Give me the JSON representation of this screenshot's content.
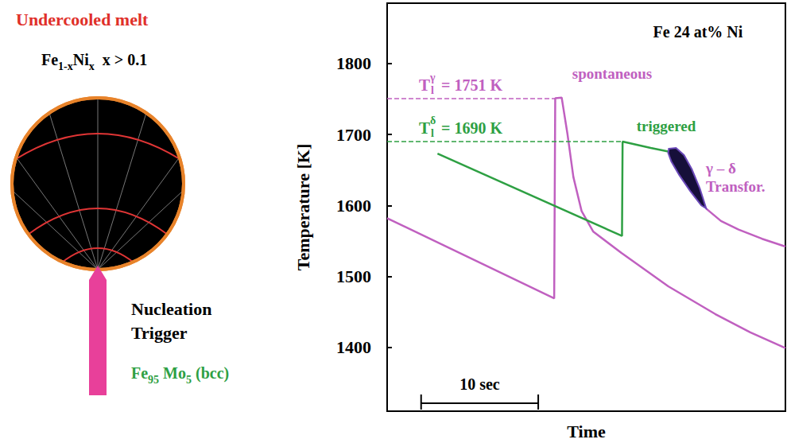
{
  "chart_data": {
    "type": "line",
    "title": "Fe 24 at% Ni",
    "x_label": "Time",
    "y_label": "Temperature [K]",
    "xlim": [
      0,
      34
    ],
    "ylim": [
      1310,
      1885
    ],
    "yticks": [
      1400,
      1500,
      1600,
      1700,
      1800
    ],
    "tick_labels": "y",
    "grid": false,
    "series": [
      {
        "color": "#c060c0",
        "values": [
          [
            0,
            1582
          ],
          [
            14.26,
            1469
          ],
          [
            14.35,
            1751
          ],
          [
            14.9,
            1752
          ],
          [
            15.4,
            1700
          ],
          [
            15.9,
            1640
          ],
          [
            16.6,
            1592
          ],
          [
            17.6,
            1563
          ],
          [
            20,
            1533
          ],
          [
            24,
            1486
          ],
          [
            28,
            1447
          ],
          [
            31,
            1421
          ],
          [
            34,
            1399
          ]
        ],
        "liquidus": {
          "symbol": "T",
          "subscript": "l",
          "superscript": "γ",
          "value": 1751,
          "label": "= 1751 K"
        }
      },
      {
        "color": "#2ea043",
        "values": [
          [
            4.3,
            1673
          ],
          [
            20.05,
            1557
          ],
          [
            20.1,
            1690
          ],
          [
            22.5,
            1681
          ],
          [
            24.0,
            1676
          ]
        ],
        "liquidus": {
          "symbol": "T",
          "subscript": "l",
          "superscript": "δ",
          "value": 1690,
          "label": "= 1690 K"
        }
      },
      {
        "color": "#c060c0",
        "values": [
          [
            27.2,
            1596
          ],
          [
            28.5,
            1578
          ],
          [
            30,
            1566
          ],
          [
            32,
            1553
          ],
          [
            34,
            1542
          ]
        ]
      }
    ],
    "annotations": [
      {
        "text": "spontaneous",
        "color": "#c060c0"
      },
      {
        "text": "triggered",
        "color": "#2ea043"
      },
      {
        "text": "γ – δ\nTransfor.",
        "color": "#c060c0"
      }
    ],
    "transformation_region": {
      "color": "#160f3a",
      "points": [
        [
          24.05,
          1680
        ],
        [
          24.66,
          1681
        ],
        [
          25.34,
          1671
        ],
        [
          26.01,
          1651
        ],
        [
          26.69,
          1624
        ],
        [
          27.23,
          1596
        ],
        [
          26.82,
          1600
        ],
        [
          25.88,
          1620
        ],
        [
          24.93,
          1643
        ],
        [
          24.26,
          1662
        ],
        [
          23.99,
          1674
        ]
      ]
    },
    "scale_bar": {
      "start": 2.9,
      "length": 10,
      "label": "10 sec"
    }
  },
  "diagram": {
    "title": "Undercooled melt",
    "melt_formula": [
      {
        "text": "Fe"
      },
      {
        "text": "1-x",
        "sub": true
      },
      {
        "text": "Ni"
      },
      {
        "text": "x",
        "sub": true
      },
      {
        "text": "  x > 0.1"
      }
    ],
    "trigger_label": [
      "Nucleation",
      "Trigger"
    ],
    "trigger_formula": [
      {
        "text": "Fe"
      },
      {
        "text": "95",
        "sub": true
      },
      {
        "text": " Mo"
      },
      {
        "text": "5",
        "sub": true
      },
      {
        "text": " (bcc)"
      }
    ]
  }
}
